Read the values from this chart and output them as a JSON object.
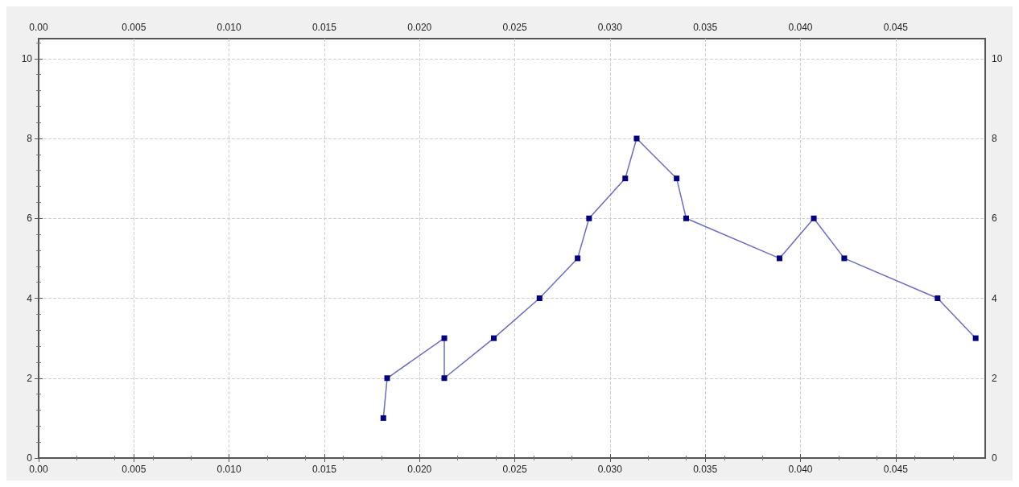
{
  "chart_data": {
    "type": "line",
    "x": [
      0.0181,
      0.0183,
      0.0213,
      0.0213,
      0.0239,
      0.0263,
      0.0283,
      0.0289,
      0.0308,
      0.0314,
      0.0335,
      0.034,
      0.0389,
      0.0407,
      0.0423,
      0.0472,
      0.0492
    ],
    "series": [
      {
        "color": "#6b6bc4",
        "values": [
          1,
          2,
          3,
          2,
          3,
          4,
          5,
          6,
          7,
          8,
          7,
          6,
          5,
          6,
          5,
          4,
          3
        ]
      }
    ],
    "xlim": [
      0,
      0.0497
    ],
    "xticks": [
      {
        "value": 0,
        "label": "0.00"
      },
      0.005,
      {
        "value": 0.01,
        "label": "0.010"
      },
      0.015,
      {
        "value": 0.02,
        "label": "0.020"
      },
      0.025,
      {
        "value": 0.03,
        "label": "0.030"
      },
      0.035,
      {
        "value": 0.04,
        "label": "0.040"
      },
      0.045
    ],
    "x2lim": [
      0,
      0.0497
    ],
    "x2ticks": [
      {
        "value": 0,
        "label": "0.00"
      },
      0.005,
      {
        "value": 0.01,
        "label": "0.010"
      },
      0.015,
      {
        "value": 0.02,
        "label": "0.020"
      },
      0.025,
      {
        "value": 0.03,
        "label": "0.030"
      },
      0.035,
      {
        "value": 0.04,
        "label": "0.040"
      },
      0.045
    ],
    "ylim": [
      0,
      10.5
    ],
    "yticks": [
      0,
      2,
      4,
      6,
      8,
      10
    ],
    "y2lim": [
      0,
      10.5
    ],
    "y2ticks": [
      0,
      2,
      4,
      6,
      8,
      10
    ],
    "grid": true,
    "marker": "square",
    "line_style": "solid"
  }
}
